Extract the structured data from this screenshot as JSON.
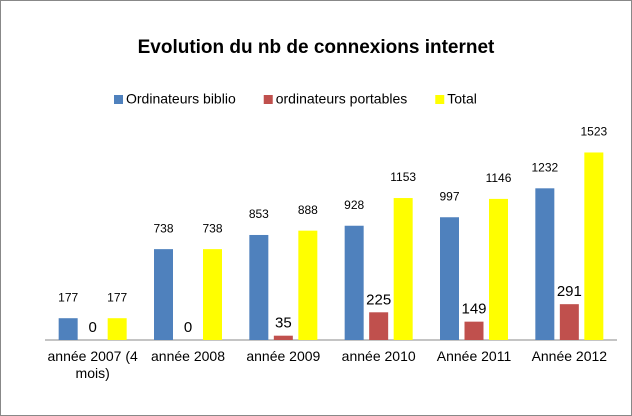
{
  "chart_data": {
    "type": "bar",
    "title": "Evolution du nb de connexions internet",
    "categories": [
      "année 2007 (4 mois)",
      "année 2008",
      "année 2009",
      "année 2010",
      "Année 2011",
      "Année 2012"
    ],
    "series": [
      {
        "name": "Ordinateurs biblio",
        "color": "#4f81bd",
        "values": [
          177,
          738,
          853,
          928,
          997,
          1232
        ]
      },
      {
        "name": "ordinateurs portables",
        "color": "#c0504d",
        "values": [
          0,
          0,
          35,
          225,
          149,
          291
        ]
      },
      {
        "name": "Total",
        "color": "#ffff00",
        "values": [
          177,
          738,
          888,
          1153,
          1146,
          1523
        ]
      }
    ],
    "ylim": [
      0,
      1600
    ],
    "legend": "top"
  }
}
